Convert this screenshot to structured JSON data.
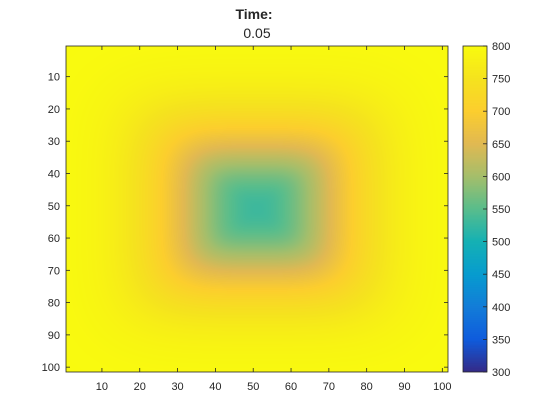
{
  "chart_data": {
    "type": "heatmap",
    "title": "Time:",
    "subtitle": "0.05",
    "grid_size": 101,
    "x_ticks": [
      10,
      20,
      30,
      40,
      50,
      60,
      70,
      80,
      90,
      100
    ],
    "y_ticks": [
      10,
      20,
      30,
      40,
      50,
      60,
      70,
      80,
      90,
      100
    ],
    "y_direction": "reverse",
    "colorbar": {
      "min": 300,
      "max": 800,
      "ticks": [
        300,
        350,
        400,
        450,
        500,
        550,
        600,
        650,
        700,
        750,
        800
      ],
      "colormap": "parula"
    },
    "field": {
      "center_value": 530,
      "boundary_value": 800
    },
    "grid": false,
    "legend": "colorbar-right"
  }
}
